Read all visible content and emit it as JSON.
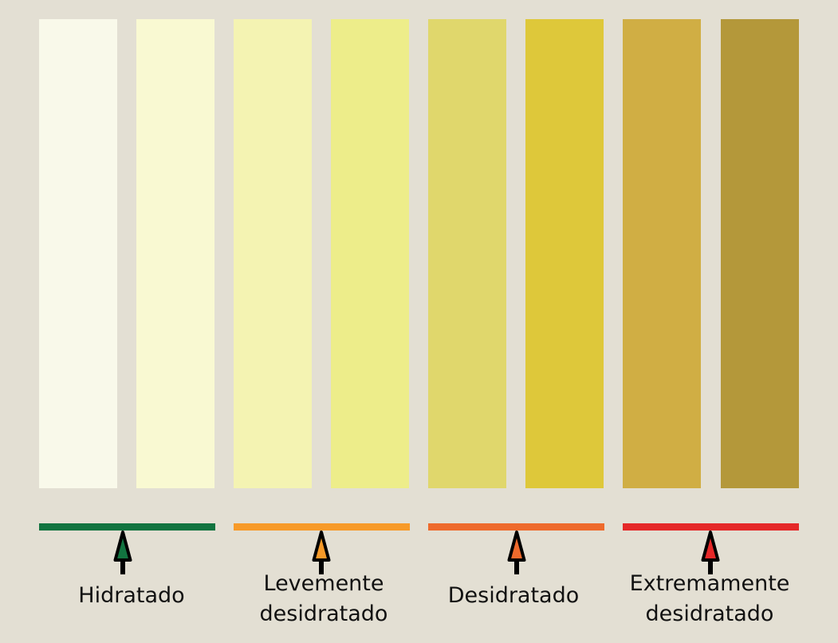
{
  "swatches": [
    {
      "color": "#f9f9ea"
    },
    {
      "color": "#f9f9d2"
    },
    {
      "color": "#f4f3b2"
    },
    {
      "color": "#eded8a"
    },
    {
      "color": "#e0d76c"
    },
    {
      "color": "#dec83a"
    },
    {
      "color": "#d0ae44"
    },
    {
      "color": "#b4983a"
    }
  ],
  "categories": [
    {
      "label": "Hidratado",
      "bar_color": "#127440",
      "arrow_color": "#127440"
    },
    {
      "label": "Levemente desidratado",
      "bar_color": "#f79a28",
      "arrow_color": "#f79a28"
    },
    {
      "label": "Desidratado",
      "bar_color": "#ee6a2c",
      "arrow_color": "#ee6a2c"
    },
    {
      "label": "Extremamente desidratado",
      "bar_color": "#e52828",
      "arrow_color": "#e52828"
    }
  ]
}
